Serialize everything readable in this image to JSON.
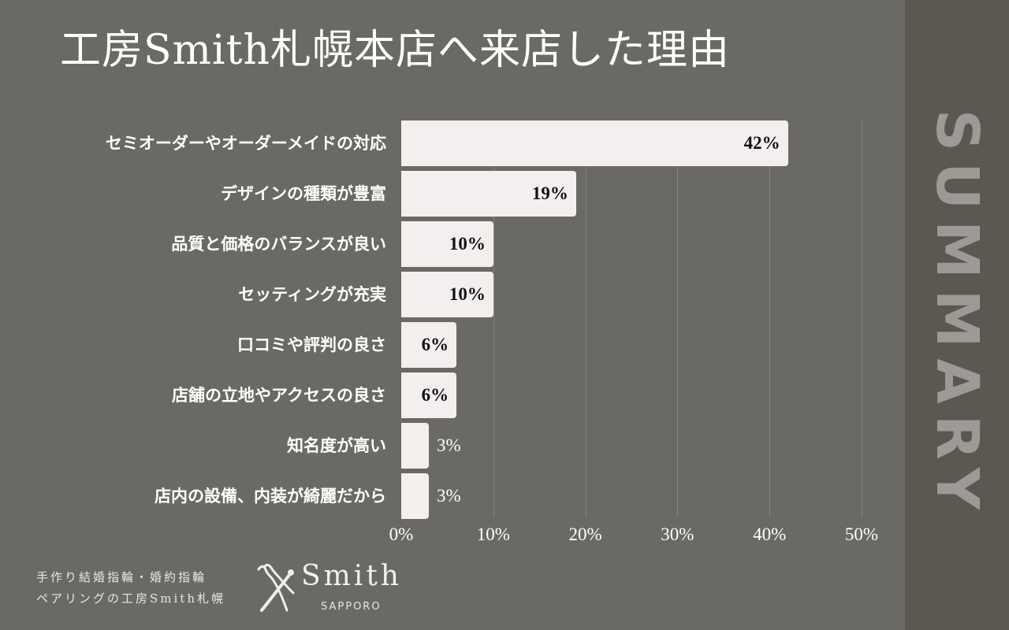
{
  "title": "工房Smith札幌本店へ来店した理由",
  "sidebar": {
    "text": "SUMMARY"
  },
  "footer": {
    "line1": "手作り結婚指輪・婚約指輪",
    "line2": "ペアリングの工房Smith札幌",
    "logo_name": "Smith",
    "logo_sub": "SAPPORO"
  },
  "colors": {
    "background": "#6a6964",
    "sidebar": "#5b5852",
    "bar": "#f3efee",
    "gridline": "#85837e",
    "sidebar_text": "#9d9a96"
  },
  "chart_data": {
    "type": "bar",
    "orientation": "horizontal",
    "title": "工房Smith札幌本店へ来店した理由",
    "categories": [
      "セミオーダーやオーダーメイドの対応",
      "デザインの種類が豊富",
      "品質と価格のバランスが良い",
      "セッティングが充実",
      "口コミや評判の良さ",
      "店舗の立地やアクセスの良さ",
      "知名度が高い",
      "店内の設備、内装が綺麗だから"
    ],
    "values": [
      42,
      19,
      10,
      10,
      6,
      6,
      3,
      3
    ],
    "value_labels": [
      "42%",
      "19%",
      "10%",
      "10%",
      "6%",
      "6%",
      "3%",
      "3%"
    ],
    "xlabel": "",
    "ylabel": "",
    "xlim": [
      0,
      50
    ],
    "x_ticks": [
      "0%",
      "10%",
      "20%",
      "30%",
      "40%",
      "50%"
    ],
    "grid": true,
    "legend": null
  }
}
